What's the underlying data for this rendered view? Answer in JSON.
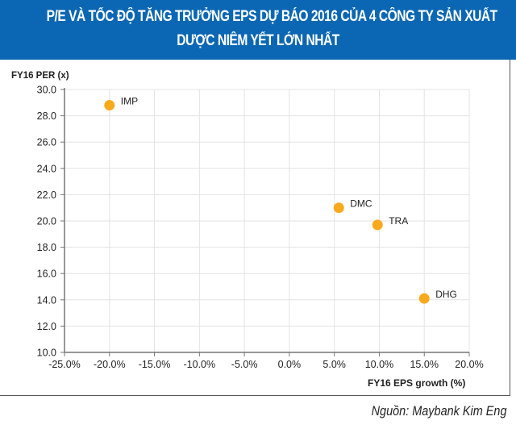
{
  "header": {
    "title_line1": "P/E VÀ TỐC ĐỘ TĂNG TRƯỞNG EPS DỰ BÁO 2016 CỦA 4 CÔNG TY SẢN XUẤT",
    "title_line2": "DƯỢC NIÊM YẾT LỚN NHẤT",
    "background_color": "#0b67b3"
  },
  "axes": {
    "ylabel": "FY16  PER (x)",
    "xlabel": "FY16 EPS growth (%)"
  },
  "source": "Nguồn: Maybank Kim Eng",
  "colors": {
    "marker": "#f9a91c",
    "grid": "#e3e3e3",
    "axis": "#777777"
  },
  "chart_data": {
    "type": "scatter",
    "title": "P/E VÀ TỐC ĐỘ TĂNG TRƯỞNG EPS DỰ BÁO 2016 CỦA 4 CÔNG TY SẢN XUẤT DƯỢC NIÊM YẾT LỚN NHẤT",
    "xlabel": "FY16 EPS growth (%)",
    "ylabel": "FY16 PER (x)",
    "xlim": [
      -25.0,
      20.0
    ],
    "ylim": [
      10.0,
      30.0
    ],
    "x_ticks": [
      "-25.0%",
      "-20.0%",
      "-15.0%",
      "-10.0%",
      "-5.0%",
      "0.0%",
      "5.0%",
      "10.0%",
      "15.0%",
      "20.0%"
    ],
    "y_ticks": [
      "10.0",
      "12.0",
      "14.0",
      "16.0",
      "18.0",
      "20.0",
      "22.0",
      "24.0",
      "26.0",
      "28.0",
      "30.0"
    ],
    "grid": true,
    "legend": null,
    "points": [
      {
        "label": "IMP",
        "x": -20.0,
        "y": 28.8
      },
      {
        "label": "DMC",
        "x": 5.5,
        "y": 21.0
      },
      {
        "label": "TRA",
        "x": 9.8,
        "y": 19.7
      },
      {
        "label": "DHG",
        "x": 15.0,
        "y": 14.1
      }
    ],
    "source": "Nguồn: Maybank Kim Eng"
  }
}
